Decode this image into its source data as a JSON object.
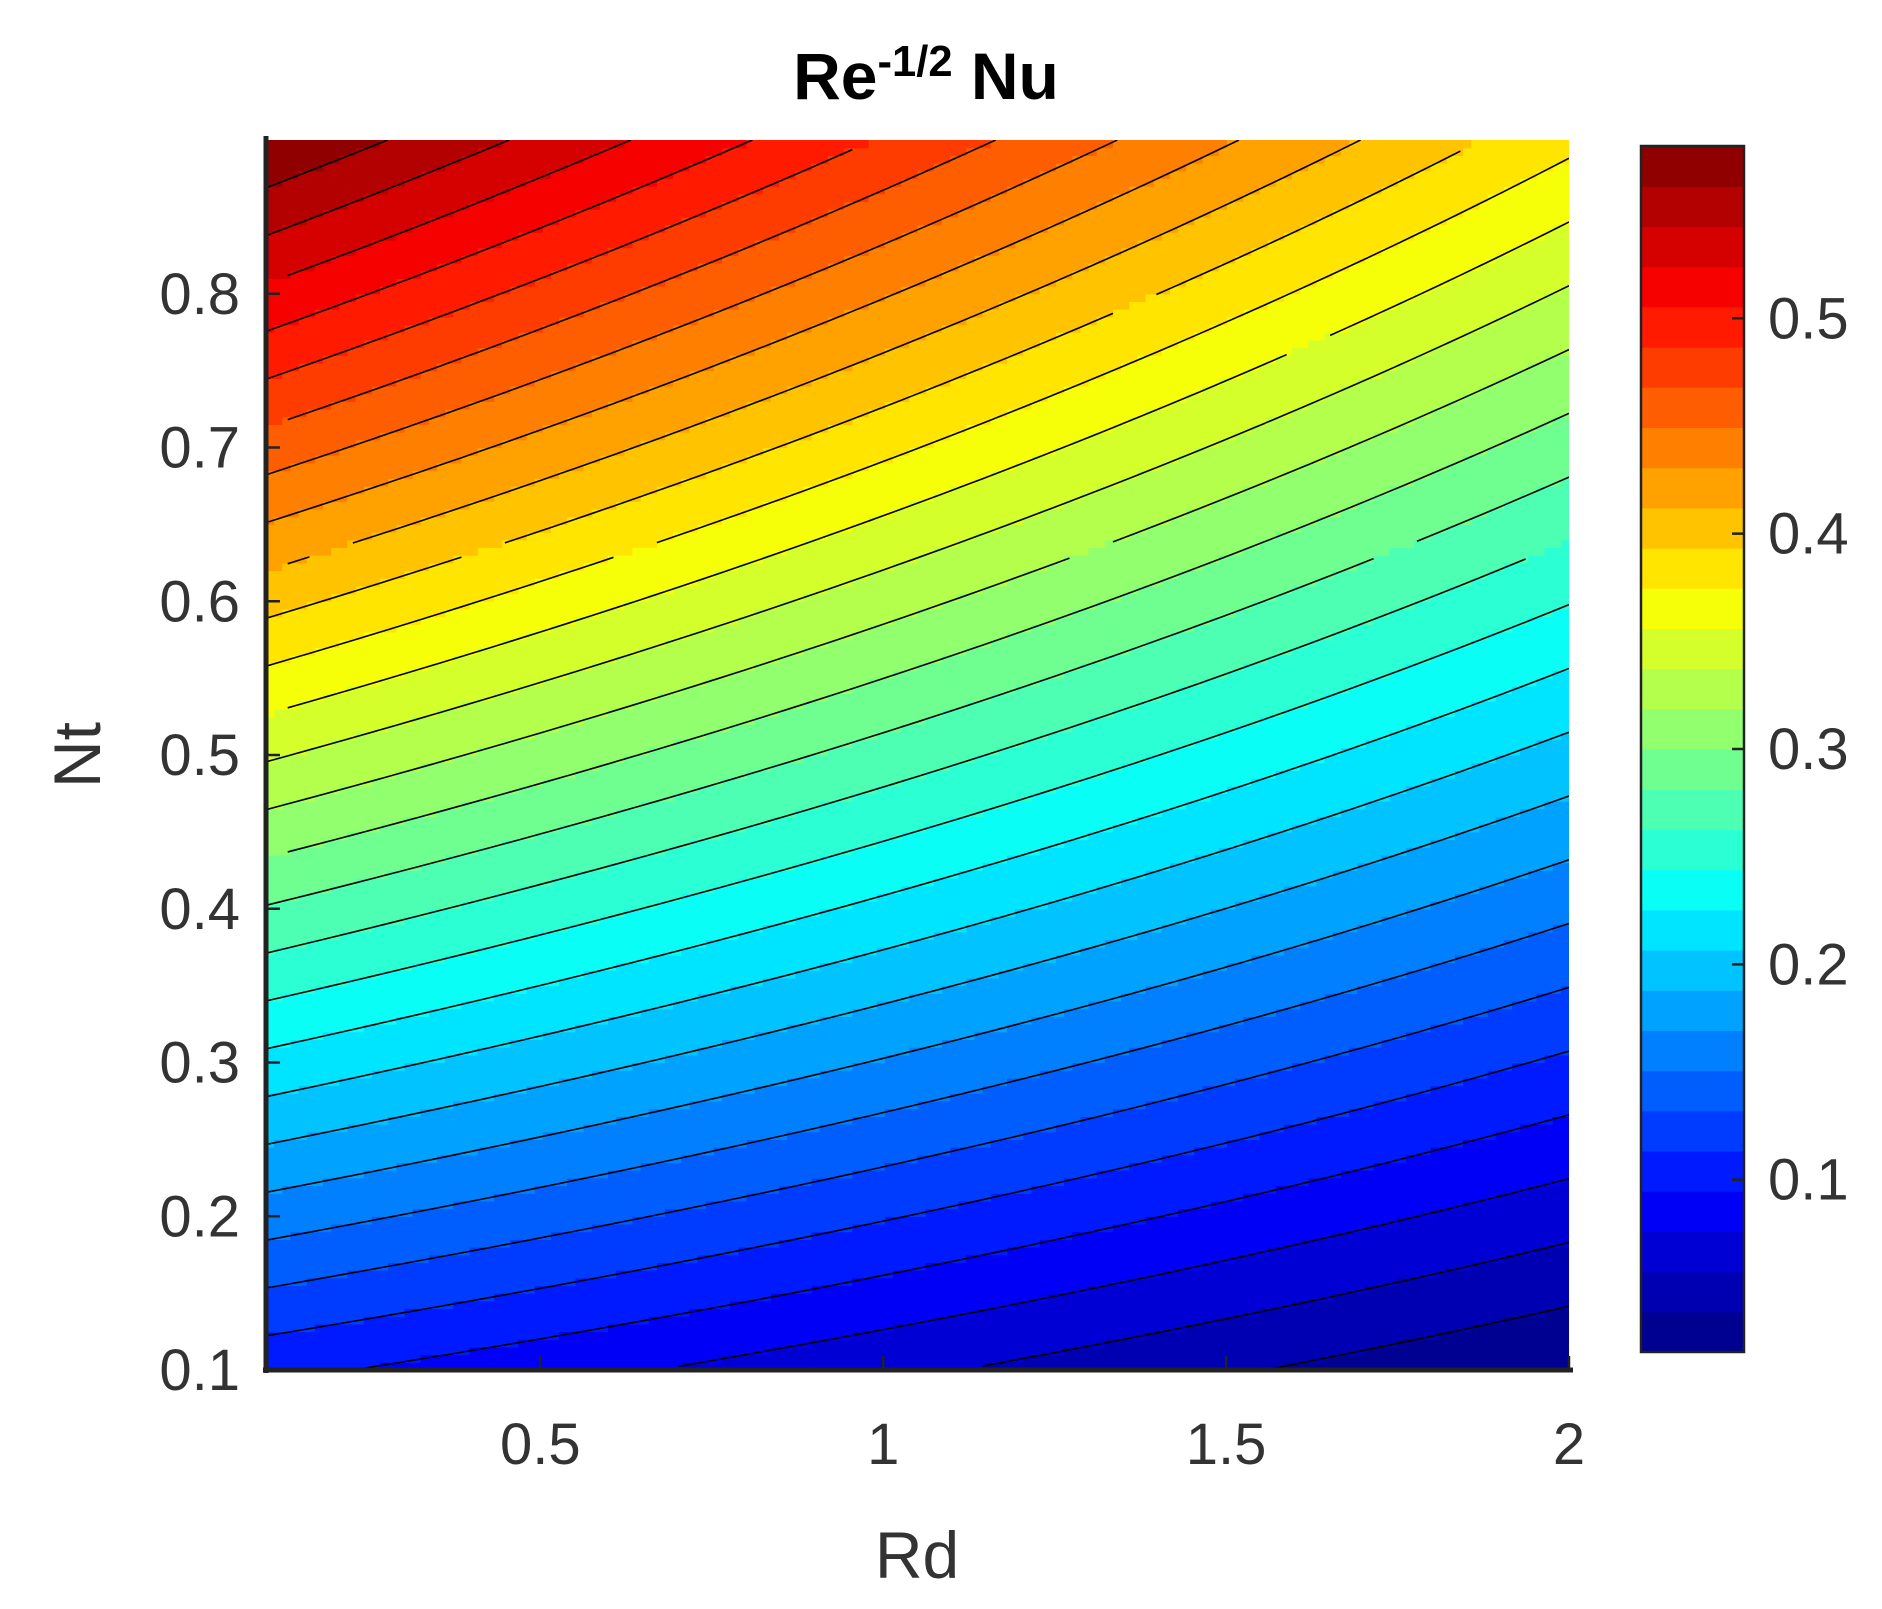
{
  "chart_data": {
    "type": "contour",
    "title": {
      "base": "Re",
      "superscript": "-1/2",
      "suffix": " Nu"
    },
    "xlabel": "Rd",
    "ylabel": "Nt",
    "xlim": [
      0.1,
      2
    ],
    "ylim": [
      0.1,
      0.9
    ],
    "xticks": [
      0.5,
      1,
      1.5,
      2
    ],
    "xtick_labels": [
      "0.5",
      "1",
      "1.5",
      "2"
    ],
    "yticks": [
      0.1,
      0.2,
      0.3,
      0.4,
      0.5,
      0.6,
      0.7,
      0.8
    ],
    "ytick_labels": [
      "0.1",
      "0.2",
      "0.3",
      "0.4",
      "0.5",
      "0.6",
      "0.7",
      "0.8"
    ],
    "colorbar": {
      "range": [
        0.02,
        0.58
      ],
      "ticks": [
        0.1,
        0.2,
        0.3,
        0.4,
        0.5
      ],
      "tick_labels": [
        "0.1",
        "0.2",
        "0.3",
        "0.4",
        "0.5"
      ],
      "colormap": "jet"
    },
    "z_at_corners": {
      "Rd_0.1_Nt_0.1": 0.1,
      "Rd_0.1_Nt_0.9": 0.58,
      "Rd_2_Nt_0.1": 0.02,
      "Rd_2_Nt_0.9": 0.38
    },
    "contour_levels": 30,
    "contour_line_color": "#000000",
    "grid": false
  }
}
